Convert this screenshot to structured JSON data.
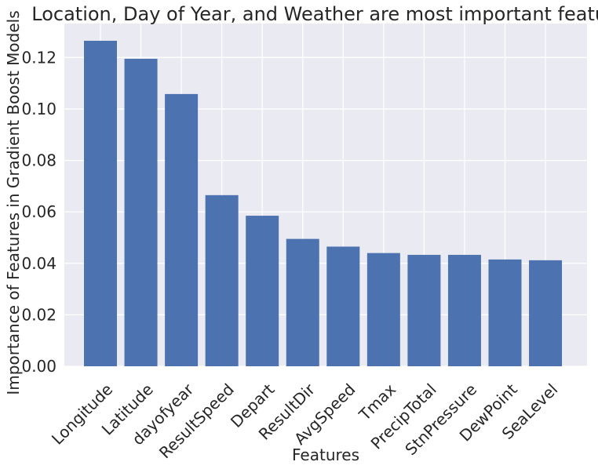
{
  "chart_data": {
    "type": "bar",
    "title": "Location, Day of Year, and Weather are most important features",
    "xlabel": "Features",
    "ylabel": "Importance of Features in Gradient Boost Models",
    "categories": [
      "Longitude",
      "Latitude",
      "dayofyear",
      "ResultSpeed",
      "Depart",
      "ResultDir",
      "AvgSpeed",
      "Tmax",
      "PrecipTotal",
      "StnPressure",
      "DewPoint",
      "SeaLevel"
    ],
    "values": [
      0.1265,
      0.1195,
      0.1058,
      0.0665,
      0.0585,
      0.0495,
      0.0465,
      0.044,
      0.0433,
      0.0433,
      0.0415,
      0.0412
    ],
    "ylim": [
      0,
      0.1332
    ],
    "yticks": [
      0.0,
      0.02,
      0.04,
      0.06,
      0.08,
      0.1,
      0.12
    ],
    "ytick_labels": [
      "0.00",
      "0.02",
      "0.04",
      "0.06",
      "0.08",
      "0.10",
      "0.12"
    ],
    "grid": true,
    "bar_color": "#4c72b0",
    "background_color": "#eaeaf2",
    "grid_color": "#ffffff"
  }
}
